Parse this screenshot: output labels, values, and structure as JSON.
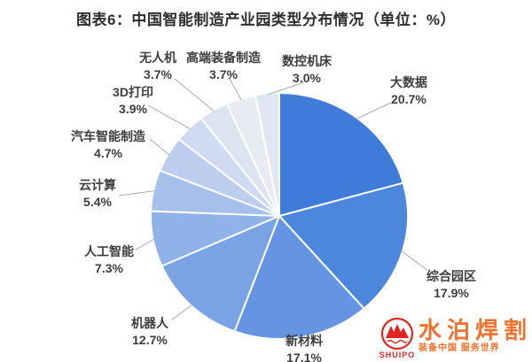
{
  "title": "图表6：中国智能制造产业园类型分布情况（单位：%）",
  "chart_data": {
    "type": "pie",
    "title": "图表6：中国智能制造产业园类型分布情况",
    "unit": "%",
    "start_angle_deg": 0,
    "direction": "clockwise",
    "value_format": "{value}%",
    "slices": [
      {
        "label": "大数据",
        "value": 20.7,
        "color": "#3F7CDA"
      },
      {
        "label": "综合园区",
        "value": 17.9,
        "color": "#4D86DD"
      },
      {
        "label": "新材料",
        "value": 17.1,
        "color": "#6595E2"
      },
      {
        "label": "机器人",
        "value": 12.7,
        "color": "#79A3E5"
      },
      {
        "label": "人工智能",
        "value": 7.3,
        "color": "#8FB2E8"
      },
      {
        "label": "云计算",
        "value": 5.4,
        "color": "#A6C0EB"
      },
      {
        "label": "汽车智能制造",
        "value": 4.7,
        "color": "#BCCDEE"
      },
      {
        "label": "3D打印",
        "value": 3.9,
        "color": "#D0DAF0"
      },
      {
        "label": "无人机",
        "value": 3.7,
        "color": "#DCE3F1"
      },
      {
        "label": "高端装备制造",
        "value": 3.7,
        "color": "#E8EBF2"
      },
      {
        "label": "数控机床",
        "value": 3.0,
        "color": "#E0E7F3"
      }
    ]
  },
  "watermark": {
    "brand": "水泊焊割",
    "brand_en": "SHUIPO",
    "tagline": "装备中国 服务世界",
    "brand_color": "#F0722E",
    "logo_color": "#E02420"
  }
}
